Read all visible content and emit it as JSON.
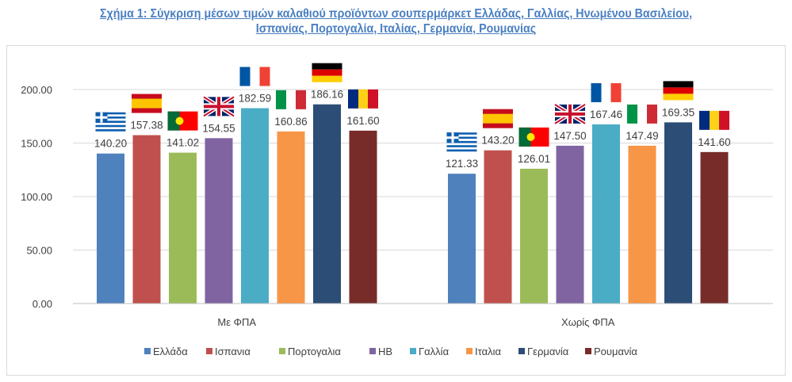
{
  "chart_data": {
    "type": "bar",
    "title": "Σχήμα 1: Σύγκριση μέσων τιμών καλαθιού προϊόντων σουπερμάρκετ Ελλάδας, Γαλλίας, Ηνωμένου Βασιλείου, Ισπανίας, Πορτογαλία, Ιταλίας, Γερμανία, Ρουμανίας",
    "title_line1": "Σχήμα 1: Σύγκριση μέσων τιμών καλαθιού προϊόντων σουπερμάρκετ Ελλάδας, Γαλλίας, Ηνωμένου Βασιλείου,",
    "title_line2": "Ισπανίας, Πορτογαλία, Ιταλίας, Γερμανία, Ρουμανίας",
    "categories": [
      "Με ΦΠΑ",
      "Χωρίς ΦΠΑ"
    ],
    "ylim": [
      0,
      200
    ],
    "yticks": [
      "0.00",
      "50.00",
      "100.00",
      "150.00",
      "200.00"
    ],
    "grid": true,
    "legend_position": "bottom",
    "series": [
      {
        "name": "Ελλάδα",
        "color": "#4f81bd",
        "flag": "greece",
        "values": [
          140.2,
          121.33
        ],
        "labels": [
          "140.20",
          "121.33"
        ]
      },
      {
        "name": "Ισπανια",
        "color": "#c0504d",
        "flag": "spain",
        "values": [
          157.38,
          143.2
        ],
        "labels": [
          "157.38",
          "143.20"
        ]
      },
      {
        "name": "Πορτογαλια",
        "color": "#9bbb59",
        "flag": "portugal",
        "values": [
          141.02,
          126.01
        ],
        "labels": [
          "141.02",
          "126.01"
        ]
      },
      {
        "name": "ΗΒ",
        "color": "#8064a2",
        "flag": "uk",
        "values": [
          154.55,
          147.5
        ],
        "labels": [
          "154.55",
          "147.50"
        ]
      },
      {
        "name": "Γαλλία",
        "color": "#4bacc6",
        "flag": "france",
        "values": [
          182.59,
          167.46
        ],
        "labels": [
          "182.59",
          "167.46"
        ]
      },
      {
        "name": "Ιταλια",
        "color": "#f79646",
        "flag": "italy",
        "values": [
          160.86,
          147.49
        ],
        "labels": [
          "160.86",
          "147.49"
        ]
      },
      {
        "name": "Γερμανία",
        "color": "#2c4d75",
        "flag": "germany",
        "values": [
          186.16,
          169.35
        ],
        "labels": [
          "186.16",
          "169.35"
        ]
      },
      {
        "name": "Ρουμανία",
        "color": "#772c2a",
        "flag": "romania",
        "values": [
          161.6,
          141.6
        ],
        "labels": [
          "161.60",
          "141.60"
        ]
      }
    ]
  }
}
